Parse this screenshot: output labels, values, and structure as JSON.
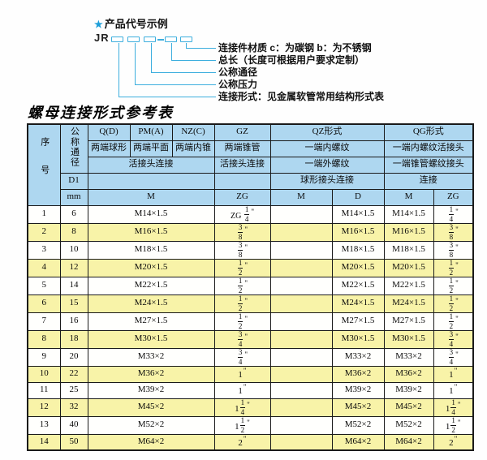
{
  "colors": {
    "line_accent": "#3CAEDE",
    "star": "#1D9ED9",
    "header_bg": "#AED7F0",
    "stripe_bg": "#F8F3A8",
    "border": "#1a1a1a"
  },
  "diagram": {
    "star": "★",
    "title": "产品代号示例",
    "code_prefix": "JR",
    "labels": [
      "连接件材质  c：为碳钢  b：为不锈钢",
      "总长（长度可根据用户要求定制）",
      "公称通径",
      "公称压力",
      "连接形式：见金属软管常用结构形式表"
    ]
  },
  "table_title": "螺母连接形式参考表",
  "table": {
    "header": {
      "seq": "序号",
      "nominal_diameter": "公称通径",
      "col_q": "Q(D)",
      "col_pm": "PM(A)",
      "col_nz": "NZ(C)",
      "col_gz": "GZ",
      "col_qz": "QZ形式",
      "col_qg": "QG形式",
      "q_desc": "两端球形",
      "pm_desc": "两端平面",
      "nz_desc": "两端内锥",
      "gz_desc": "两端锥管",
      "qz_desc1": "一端内螺纹",
      "qg_desc1": "一端内螺纹活接头",
      "left_conn": "活接头连接",
      "gz_conn": "活接头连接",
      "qz_desc2": "一端外螺纹",
      "qg_desc2": "一端锥管螺纹接头",
      "d1": "D1",
      "qz_conn": "球形接头连接",
      "qg_conn": "连接",
      "mm": "mm",
      "m_label": "M",
      "zg_label": "ZG",
      "qz_m": "M",
      "qz_d": "D",
      "qg_m": "M",
      "qg_zg": "ZG"
    },
    "rows": [
      {
        "no": "1",
        "mm": "6",
        "m": "M14×1.5",
        "gz": {
          "pre": "ZG",
          "num": "1",
          "den": "4"
        },
        "qz_m": "",
        "qz_d": "M14×1.5",
        "qg_m": "M14×1.5",
        "qg_zg": {
          "num": "1",
          "den": "4"
        }
      },
      {
        "no": "2",
        "mm": "8",
        "m": "M16×1.5",
        "gz": {
          "num": "3",
          "den": "8"
        },
        "qz_m": "",
        "qz_d": "M16×1.5",
        "qg_m": "M16×1.5",
        "qg_zg": {
          "num": "3",
          "den": "8"
        }
      },
      {
        "no": "3",
        "mm": "10",
        "m": "M18×1.5",
        "gz": {
          "num": "3",
          "den": "8"
        },
        "qz_m": "",
        "qz_d": "M18×1.5",
        "qg_m": "M18×1.5",
        "qg_zg": {
          "num": "3",
          "den": "8"
        }
      },
      {
        "no": "4",
        "mm": "12",
        "m": "M20×1.5",
        "gz": {
          "num": "1",
          "den": "2"
        },
        "qz_m": "",
        "qz_d": "M20×1.5",
        "qg_m": "M20×1.5",
        "qg_zg": {
          "num": "1",
          "den": "2"
        }
      },
      {
        "no": "5",
        "mm": "14",
        "m": "M22×1.5",
        "gz": {
          "num": "1",
          "den": "2"
        },
        "qz_m": "",
        "qz_d": "M22×1.5",
        "qg_m": "M22×1.5",
        "qg_zg": {
          "num": "1",
          "den": "2"
        }
      },
      {
        "no": "6",
        "mm": "15",
        "m": "M24×1.5",
        "gz": {
          "num": "1",
          "den": "2"
        },
        "qz_m": "",
        "qz_d": "M24×1.5",
        "qg_m": "M24×1.5",
        "qg_zg": {
          "num": "1",
          "den": "2"
        }
      },
      {
        "no": "7",
        "mm": "16",
        "m": "M27×1.5",
        "gz": {
          "num": "1",
          "den": "2"
        },
        "qz_m": "",
        "qz_d": "M27×1.5",
        "qg_m": "M27×1.5",
        "qg_zg": {
          "num": "1",
          "den": "2"
        }
      },
      {
        "no": "8",
        "mm": "18",
        "m": "M30×1.5",
        "gz": {
          "num": "3",
          "den": "4"
        },
        "qz_m": "",
        "qz_d": "M30×1.5",
        "qg_m": "M30×1.5",
        "qg_zg": {
          "num": "3",
          "den": "4"
        }
      },
      {
        "no": "9",
        "mm": "20",
        "m": "M33×2",
        "gz": {
          "num": "3",
          "den": "4"
        },
        "qz_m": "",
        "qz_d": "M33×2",
        "qg_m": "M33×2",
        "qg_zg": {
          "num": "3",
          "den": "4"
        }
      },
      {
        "no": "10",
        "mm": "22",
        "m": "M36×2",
        "gz": {
          "whole": "1"
        },
        "qz_m": "",
        "qz_d": "M36×2",
        "qg_m": "M36×2",
        "qg_zg": {
          "whole": "1"
        }
      },
      {
        "no": "11",
        "mm": "25",
        "m": "M39×2",
        "gz": {
          "whole": "1"
        },
        "qz_m": "",
        "qz_d": "M39×2",
        "qg_m": "M39×2",
        "qg_zg": {
          "whole": "1"
        }
      },
      {
        "no": "12",
        "mm": "32",
        "m": "M45×2",
        "gz": {
          "whole": "1",
          "num": "1",
          "den": "4"
        },
        "qz_m": "",
        "qz_d": "M45×2",
        "qg_m": "M45×2",
        "qg_zg": {
          "whole": "1",
          "num": "1",
          "den": "4"
        }
      },
      {
        "no": "13",
        "mm": "40",
        "m": "M52×2",
        "gz": {
          "whole": "1",
          "num": "1",
          "den": "2"
        },
        "qz_m": "",
        "qz_d": "M52×2",
        "qg_m": "M52×2",
        "qg_zg": {
          "whole": "1",
          "num": "1",
          "den": "2"
        }
      },
      {
        "no": "14",
        "mm": "50",
        "m": "M64×2",
        "gz": {
          "whole": "2"
        },
        "qz_m": "",
        "qz_d": "M64×2",
        "qg_m": "M64×2",
        "qg_zg": {
          "whole": "2"
        }
      }
    ]
  }
}
